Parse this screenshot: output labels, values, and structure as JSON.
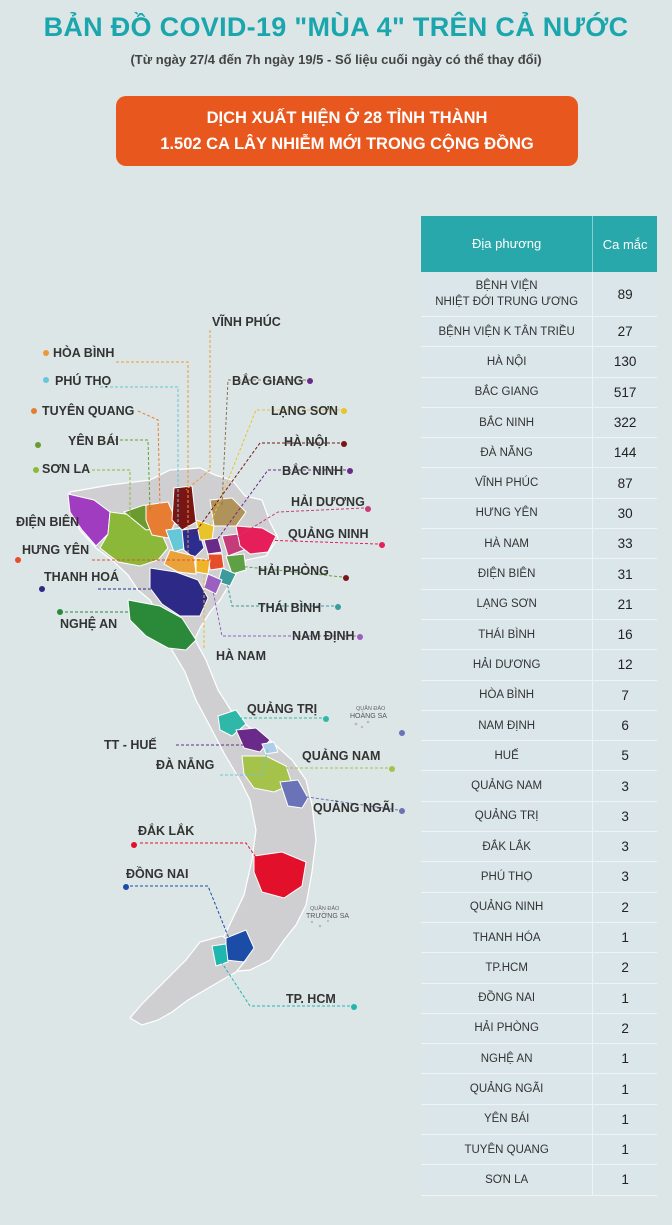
{
  "header": {
    "title": "BẢN ĐỒ COVID-19 \"MÙA 4\" TRÊN CẢ NƯỚC",
    "subtitle": "(Từ ngày 27/4 đến 7h ngày 19/5 - Số liệu cuối ngày có thể thay đổi)"
  },
  "banner": {
    "line1": "DỊCH XUẤT HIỆN Ở 28 TỈNH THÀNH",
    "line2": "1.502 CA LÂY NHIỄM MỚI TRONG CỘNG ĐỒNG"
  },
  "map_labels": {
    "vinh_phuc": "VĨNH PHÚC",
    "hoa_binh": "HÒA BÌNH",
    "phu_tho": "PHÚ THỌ",
    "bac_giang": "BẮC GIANG",
    "tuyen_quang": "TUYÊN QUANG",
    "lang_son": "LẠNG SƠN",
    "yen_bai": "YÊN BÁI",
    "ha_noi": "HÀ NỘI",
    "son_la": "SƠN LA",
    "bac_ninh": "BẮC NINH",
    "hai_duong": "HẢI DƯƠNG",
    "dien_bien": "ĐIỆN BIÊN",
    "quang_ninh": "QUẢNG NINH",
    "hung_yen": "HƯNG YÊN",
    "hai_phong": "HẢI PHÒNG",
    "thanh_hoa": "THANH HOÁ",
    "thai_binh": "THÁI BÌNH",
    "nghe_an": "NGHỆ AN",
    "nam_dinh": "NAM ĐỊNH",
    "ha_nam": "HÀ NAM",
    "quang_tri": "QUẢNG TRỊ",
    "hoang_sa_1": "QUẦN ĐẢO",
    "hoang_sa_2": "HOÀNG SA",
    "tt_hue": "TT - HUẾ",
    "quang_nam": "QUẢNG NAM",
    "da_nang": "ĐÀ NẴNG",
    "quang_ngai": "QUẢNG NGÃI",
    "dak_lak": "ĐẮK LẮK",
    "dong_nai": "ĐỒNG NAI",
    "truong_sa_1": "QUẦN ĐẢO",
    "truong_sa_2": "TRƯỜNG SA",
    "tp_hcm": "TP. HCM"
  },
  "colors": {
    "title": "#1aa6ac",
    "banner": "#e8581e",
    "table_header": "#28a8ab",
    "base_land": "#cfcfd2"
  },
  "table": {
    "col_location": "Địa phương",
    "col_cases": "Ca mắc",
    "rows": [
      {
        "name": "BỆNH VIỆN",
        "name2": "NHIỆT ĐỚI TRUNG ƯƠNG",
        "cases": "89"
      },
      {
        "name": "BỆNH VIỆN K TÂN TRIỀU",
        "name2": "",
        "cases": "27"
      },
      {
        "name": "HÀ NỘI",
        "name2": "",
        "cases": "130"
      },
      {
        "name": "BẮC GIANG",
        "name2": "",
        "cases": "517"
      },
      {
        "name": "BẮC NINH",
        "name2": "",
        "cases": "322"
      },
      {
        "name": "ĐÀ NẴNG",
        "name2": "",
        "cases": "144"
      },
      {
        "name": "VĨNH PHÚC",
        "name2": "",
        "cases": "87"
      },
      {
        "name": "HƯNG YÊN",
        "name2": "",
        "cases": "30"
      },
      {
        "name": "HÀ NAM",
        "name2": "",
        "cases": "33"
      },
      {
        "name": "ĐIỆN BIÊN",
        "name2": "",
        "cases": "31"
      },
      {
        "name": "LẠNG SƠN",
        "name2": "",
        "cases": "21"
      },
      {
        "name": "THÁI BÌNH",
        "name2": "",
        "cases": "16"
      },
      {
        "name": "HẢI DƯƠNG",
        "name2": "",
        "cases": "12"
      },
      {
        "name": "HÒA BÌNH",
        "name2": "",
        "cases": "7"
      },
      {
        "name": "NAM ĐỊNH",
        "name2": "",
        "cases": "6"
      },
      {
        "name": "HUẾ",
        "name2": "",
        "cases": "5"
      },
      {
        "name": "QUẢNG NAM",
        "name2": "",
        "cases": "3"
      },
      {
        "name": "QUẢNG TRỊ",
        "name2": "",
        "cases": "3"
      },
      {
        "name": "ĐẮK LẮK",
        "name2": "",
        "cases": "3"
      },
      {
        "name": "PHÚ THỌ",
        "name2": "",
        "cases": "3"
      },
      {
        "name": "QUẢNG NINH",
        "name2": "",
        "cases": "2"
      },
      {
        "name": "THANH HÓA",
        "name2": "",
        "cases": "1"
      },
      {
        "name": "TP.HCM",
        "name2": "",
        "cases": "2"
      },
      {
        "name": "ĐỒNG NAI",
        "name2": "",
        "cases": "1"
      },
      {
        "name": "HẢI PHÒNG",
        "name2": "",
        "cases": "2"
      },
      {
        "name": "NGHỆ AN",
        "name2": "",
        "cases": "1"
      },
      {
        "name": "QUẢNG NGÃI",
        "name2": "",
        "cases": "1"
      },
      {
        "name": "YÊN BÁI",
        "name2": "",
        "cases": "1"
      },
      {
        "name": "TUYÊN QUANG",
        "name2": "",
        "cases": "1"
      },
      {
        "name": "SƠN LA",
        "name2": "",
        "cases": "1"
      }
    ]
  }
}
